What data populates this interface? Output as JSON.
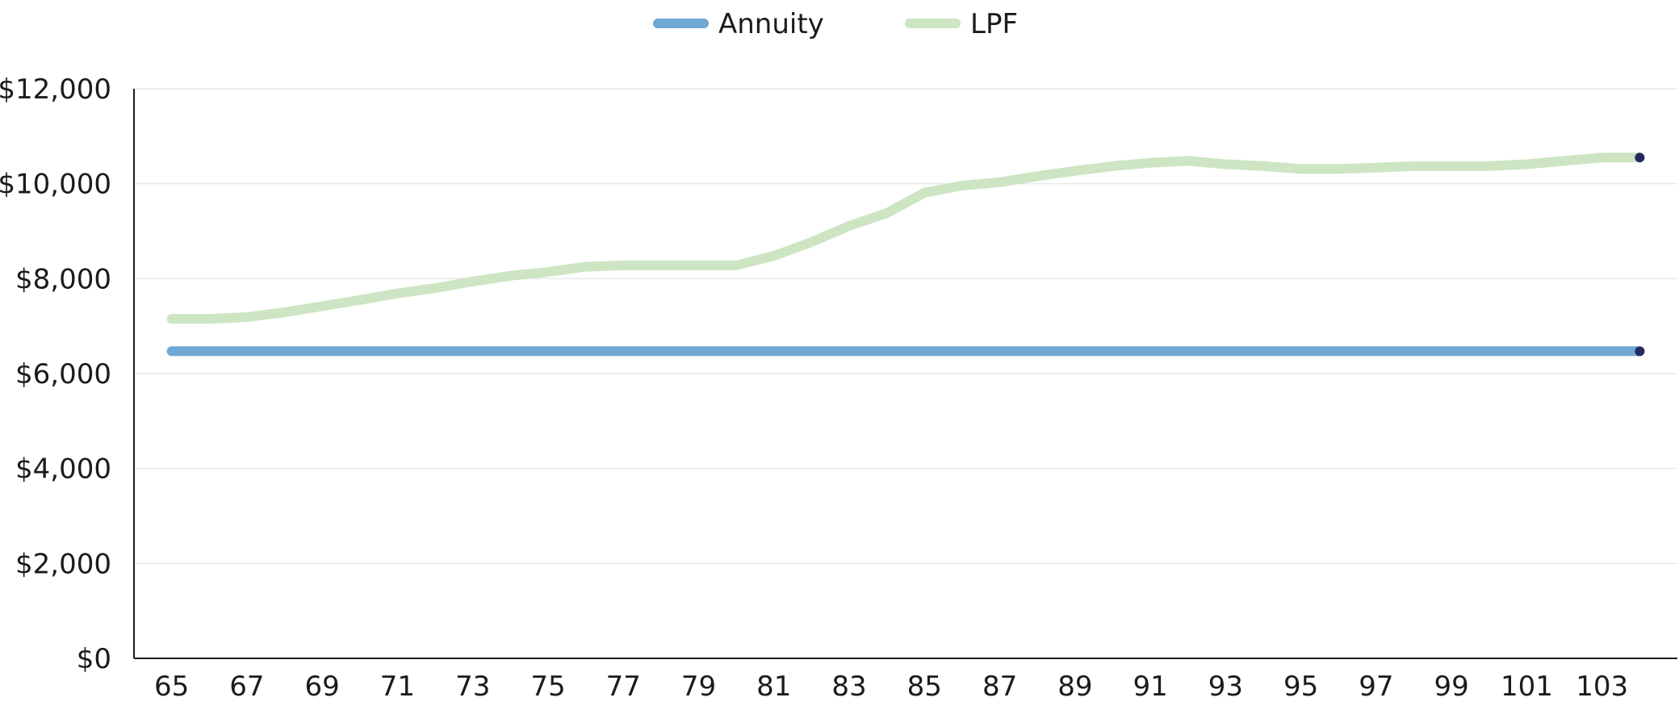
{
  "colors": {
    "annuity": "#6fa8d3",
    "lpf": "#cde5c3",
    "endpoint_marker": "#232a5e",
    "axis": "#1b1b1b",
    "grid": "#e9e9e9"
  },
  "legend": {
    "items": [
      {
        "label": "Annuity",
        "series": "Annuity"
      },
      {
        "label": "LPF",
        "series": "LPF"
      }
    ]
  },
  "chart_data": {
    "type": "line",
    "title": "",
    "xlabel": "",
    "ylabel": "",
    "x": [
      65,
      66,
      67,
      68,
      69,
      70,
      71,
      72,
      73,
      74,
      75,
      76,
      77,
      78,
      79,
      80,
      81,
      82,
      83,
      84,
      85,
      86,
      87,
      88,
      89,
      90,
      91,
      92,
      93,
      94,
      95,
      96,
      97,
      98,
      99,
      100,
      101,
      102,
      103,
      104
    ],
    "x_tick_labels": [
      "65",
      "67",
      "69",
      "71",
      "73",
      "75",
      "77",
      "79",
      "81",
      "83",
      "85",
      "87",
      "89",
      "91",
      "93",
      "95",
      "97",
      "99",
      "101",
      "103"
    ],
    "y_tick_labels": [
      "$0",
      "$2,000",
      "$4,000",
      "$6,000",
      "$8,000",
      "$10,000",
      "$12,000"
    ],
    "ylim": [
      0,
      12000
    ],
    "y_ticks": [
      0,
      2000,
      4000,
      6000,
      8000,
      10000,
      12000
    ],
    "xlim": [
      64,
      105
    ],
    "grid": "horizontal",
    "legend_position": "top-center",
    "series": [
      {
        "name": "Annuity",
        "values": [
          6470,
          6470,
          6470,
          6470,
          6470,
          6470,
          6470,
          6470,
          6470,
          6470,
          6470,
          6470,
          6470,
          6470,
          6470,
          6470,
          6470,
          6470,
          6470,
          6470,
          6470,
          6470,
          6470,
          6470,
          6470,
          6470,
          6470,
          6470,
          6470,
          6470,
          6470,
          6470,
          6470,
          6470,
          6470,
          6470,
          6470,
          6470,
          6470,
          6470
        ]
      },
      {
        "name": "LPF",
        "values": [
          7150,
          7150,
          7190,
          7290,
          7420,
          7550,
          7690,
          7800,
          7940,
          8060,
          8140,
          8250,
          8280,
          8280,
          8280,
          8280,
          8480,
          8770,
          9110,
          9380,
          9810,
          9960,
          10030,
          10160,
          10270,
          10370,
          10440,
          10480,
          10410,
          10370,
          10310,
          10310,
          10340,
          10370,
          10370,
          10370,
          10410,
          10480,
          10550,
          10550
        ]
      }
    ]
  }
}
